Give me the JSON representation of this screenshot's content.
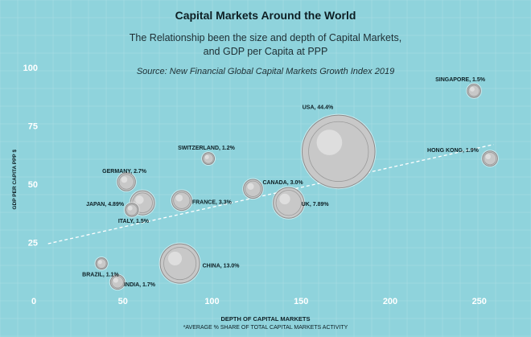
{
  "chart_data": {
    "type": "scatter",
    "title": "Capital Markets Around the World",
    "subtitle_lines": [
      "The Relationship been the size and depth of Capital Markets,",
      "and GDP per Capita at PPP"
    ],
    "source": "Source: New Financial Global Capital Markets Growth Index 2019",
    "xlabel": "DEPTH OF CAPITAL MARKETS",
    "xlabel_note": "*AVERAGE % SHARE OF TOTAL CAPITAL MARKETS ACTIVITY",
    "ylabel": "GDP PER CAPITA PPP $",
    "xlim": [
      0,
      265
    ],
    "ylim": [
      0,
      105
    ],
    "x_ticks": [
      "0",
      "50",
      "100",
      "150",
      "200",
      "250"
    ],
    "y_ticks": [
      "25",
      "50",
      "75",
      "100"
    ],
    "marker": "coin",
    "marker_size": "share of global capital markets activity",
    "trendline": {
      "style": "dashed",
      "x": [
        8,
        258
      ],
      "y": [
        24.5,
        67
      ]
    },
    "points": [
      {
        "label": "USA, 44.4%",
        "x": 171,
        "y": 64,
        "share": 44.4
      },
      {
        "label": "CHINA, 13.0%",
        "x": 82,
        "y": 16,
        "share": 13.0
      },
      {
        "label": "UK, 7.89%",
        "x": 143,
        "y": 42,
        "share": 7.89
      },
      {
        "label": "JAPAN, 4.89%",
        "x": 61,
        "y": 42,
        "share": 4.89
      },
      {
        "label": "GERMANY, 2.7%",
        "x": 52,
        "y": 51,
        "share": 2.7
      },
      {
        "label": "FRANCE, 3.3%",
        "x": 83,
        "y": 43,
        "share": 3.3
      },
      {
        "label": "CANADA, 3.0%",
        "x": 123,
        "y": 48,
        "share": 3.0
      },
      {
        "label": "ITALY, 1.5%",
        "x": 55,
        "y": 39,
        "share": 1.5
      },
      {
        "label": "SWITZERLAND, 1.2%",
        "x": 98,
        "y": 61,
        "share": 1.2
      },
      {
        "label": "SINGAPORE, 1.5%",
        "x": 247,
        "y": 90,
        "share": 1.5
      },
      {
        "label": "HONG KONG, 1.9%",
        "x": 256,
        "y": 61,
        "share": 1.9
      },
      {
        "label": "BRAZIL, 1.1%",
        "x": 38,
        "y": 16,
        "share": 1.1
      },
      {
        "label": "INDIA, 1.7%",
        "x": 47,
        "y": 8,
        "share": 1.7
      }
    ],
    "colors": {
      "background": "#8fd3dc",
      "grid": "#a9dde4",
      "text": "#0d1f24",
      "axis_text": "#ffffff",
      "coin": "#c8c8c8",
      "trendline": "#ffffff"
    }
  }
}
